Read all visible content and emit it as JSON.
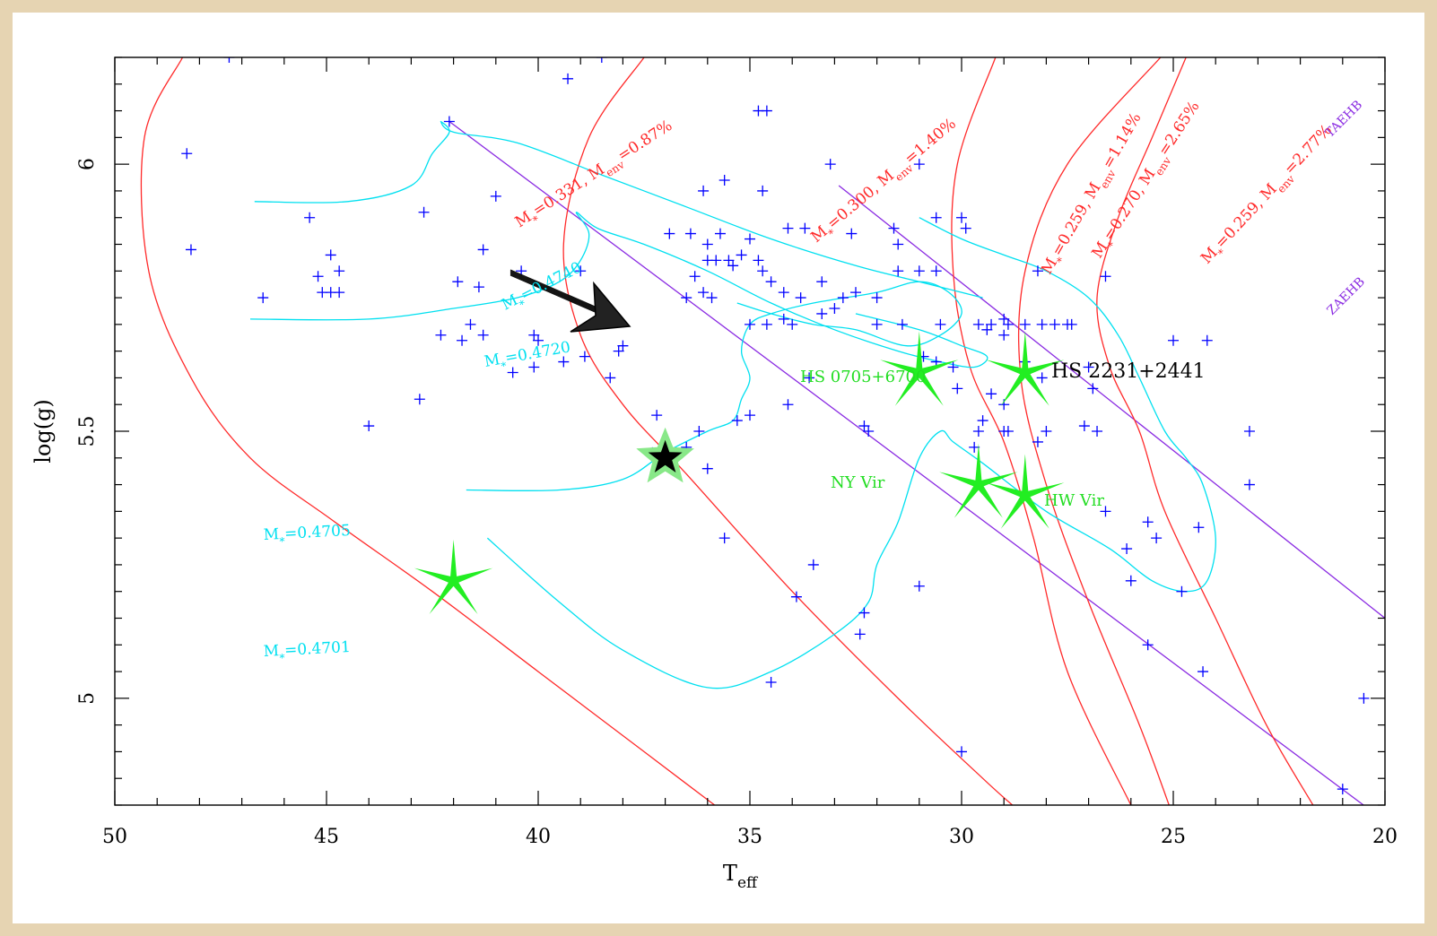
{
  "chart_data": {
    "type": "scatter",
    "title": "",
    "xlabel": "T",
    "xlabel_sub": "eff",
    "ylabel": "log(g)",
    "xlim": [
      50,
      20
    ],
    "ylim": [
      6.2,
      4.8
    ],
    "x_ticks": [
      "50",
      "45",
      "40",
      "35",
      "30",
      "25",
      "20"
    ],
    "y_ticks": [
      "5",
      "5.5",
      "6"
    ],
    "colors": {
      "points": "#0000ff",
      "red_tracks": "#ff2a2a",
      "cyan_tracks": "#00e0f0",
      "purple_lines": "#8a2be2",
      "stars": "#22ee22",
      "highlight_star": "#000000"
    },
    "points": [
      [
        34.5,
        5.03
      ],
      [
        30.0,
        4.9
      ],
      [
        32.3,
        5.16
      ],
      [
        32.4,
        5.12
      ],
      [
        33.9,
        5.19
      ],
      [
        31.0,
        5.21
      ],
      [
        33.5,
        5.25
      ],
      [
        35.6,
        5.3
      ],
      [
        36.0,
        5.43
      ],
      [
        36.5,
        5.47
      ],
      [
        37.3,
        5.46
      ],
      [
        37.2,
        5.53
      ],
      [
        36.2,
        5.5
      ],
      [
        35.3,
        5.52
      ],
      [
        35.0,
        5.53
      ],
      [
        34.1,
        5.55
      ],
      [
        33.6,
        5.6
      ],
      [
        32.3,
        5.51
      ],
      [
        32.2,
        5.5
      ],
      [
        29.7,
        5.47
      ],
      [
        29.6,
        5.5
      ],
      [
        29.0,
        5.5
      ],
      [
        28.9,
        5.5
      ],
      [
        28.2,
        5.48
      ],
      [
        28.0,
        5.5
      ],
      [
        27.1,
        5.51
      ],
      [
        26.8,
        5.5
      ],
      [
        29.5,
        5.52
      ],
      [
        29.3,
        5.57
      ],
      [
        29.0,
        5.55
      ],
      [
        30.6,
        5.63
      ],
      [
        30.1,
        5.58
      ],
      [
        30.2,
        5.62
      ],
      [
        30.9,
        5.64
      ],
      [
        29.0,
        5.68
      ],
      [
        28.9,
        5.7
      ],
      [
        29.3,
        5.7
      ],
      [
        28.5,
        5.63
      ],
      [
        28.1,
        5.6
      ],
      [
        27.0,
        5.62
      ],
      [
        26.9,
        5.58
      ],
      [
        28.1,
        5.7
      ],
      [
        27.5,
        5.7
      ],
      [
        28.2,
        5.8
      ],
      [
        44.0,
        5.51
      ],
      [
        42.8,
        5.56
      ],
      [
        40.6,
        5.61
      ],
      [
        40.1,
        5.62
      ],
      [
        39.4,
        5.63
      ],
      [
        38.9,
        5.64
      ],
      [
        38.3,
        5.6
      ],
      [
        38.0,
        5.66
      ],
      [
        38.1,
        5.65
      ],
      [
        42.3,
        5.68
      ],
      [
        41.8,
        5.67
      ],
      [
        41.6,
        5.7
      ],
      [
        41.3,
        5.68
      ],
      [
        40.1,
        5.68
      ],
      [
        40.0,
        5.67
      ],
      [
        46.5,
        5.75
      ],
      [
        45.1,
        5.76
      ],
      [
        44.9,
        5.76
      ],
      [
        44.7,
        5.76
      ],
      [
        45.2,
        5.79
      ],
      [
        44.7,
        5.8
      ],
      [
        44.9,
        5.83
      ],
      [
        41.4,
        5.77
      ],
      [
        41.9,
        5.78
      ],
      [
        41.3,
        5.84
      ],
      [
        40.4,
        5.8
      ],
      [
        39.0,
        5.8
      ],
      [
        36.5,
        5.75
      ],
      [
        36.1,
        5.76
      ],
      [
        35.9,
        5.75
      ],
      [
        36.3,
        5.79
      ],
      [
        36.0,
        5.82
      ],
      [
        35.8,
        5.82
      ],
      [
        35.5,
        5.82
      ],
      [
        35.4,
        5.81
      ],
      [
        35.2,
        5.83
      ],
      [
        34.8,
        5.82
      ],
      [
        34.7,
        5.8
      ],
      [
        34.5,
        5.78
      ],
      [
        34.2,
        5.76
      ],
      [
        33.8,
        5.75
      ],
      [
        33.3,
        5.78
      ],
      [
        32.8,
        5.75
      ],
      [
        32.5,
        5.76
      ],
      [
        32.0,
        5.75
      ],
      [
        31.5,
        5.8
      ],
      [
        31.0,
        5.8
      ],
      [
        30.6,
        5.8
      ],
      [
        33.0,
        5.73
      ],
      [
        33.3,
        5.72
      ],
      [
        34.6,
        5.7
      ],
      [
        34.2,
        5.71
      ],
      [
        34.0,
        5.7
      ],
      [
        35.0,
        5.7
      ],
      [
        32.0,
        5.7
      ],
      [
        31.4,
        5.7
      ],
      [
        30.5,
        5.7
      ],
      [
        29.6,
        5.7
      ],
      [
        29.4,
        5.69
      ],
      [
        29.0,
        5.71
      ],
      [
        28.5,
        5.7
      ],
      [
        27.8,
        5.7
      ],
      [
        27.4,
        5.7
      ],
      [
        26.6,
        5.79
      ],
      [
        25.0,
        5.67
      ],
      [
        24.2,
        5.67
      ],
      [
        23.2,
        5.5
      ],
      [
        36.0,
        5.85
      ],
      [
        36.4,
        5.87
      ],
      [
        35.7,
        5.87
      ],
      [
        35.0,
        5.86
      ],
      [
        34.1,
        5.88
      ],
      [
        33.7,
        5.88
      ],
      [
        32.6,
        5.87
      ],
      [
        31.5,
        5.85
      ],
      [
        31.6,
        5.88
      ],
      [
        36.9,
        5.87
      ],
      [
        36.1,
        5.95
      ],
      [
        35.6,
        5.97
      ],
      [
        34.7,
        5.95
      ],
      [
        33.1,
        6.0
      ],
      [
        31.0,
        6.0
      ],
      [
        30.6,
        5.9
      ],
      [
        30.0,
        5.9
      ],
      [
        29.9,
        5.88
      ],
      [
        48.2,
        5.84
      ],
      [
        48.3,
        6.02
      ],
      [
        45.4,
        5.9
      ],
      [
        42.7,
        5.91
      ],
      [
        41.0,
        5.94
      ],
      [
        42.1,
        6.08
      ],
      [
        39.3,
        6.16
      ],
      [
        34.8,
        6.1
      ],
      [
        34.6,
        6.1
      ],
      [
        47.3,
        6.2
      ],
      [
        38.5,
        6.2
      ],
      [
        23.2,
        5.4
      ],
      [
        20.5,
        5.0
      ],
      [
        21.0,
        4.83
      ],
      [
        24.3,
        5.05
      ],
      [
        25.6,
        5.1
      ],
      [
        24.8,
        5.2
      ],
      [
        26.0,
        5.22
      ],
      [
        26.1,
        5.28
      ],
      [
        26.6,
        5.35
      ],
      [
        25.6,
        5.33
      ],
      [
        25.4,
        5.3
      ],
      [
        24.4,
        5.32
      ]
    ],
    "red_tracks": [
      {
        "label_parts": [
          "M",
          "*",
          "=0.331, M",
          "env",
          "=0.87%"
        ],
        "points": [
          [
            48.4,
            6.2
          ],
          [
            49.3,
            6.05
          ],
          [
            49.2,
            5.8
          ],
          [
            48.2,
            5.6
          ],
          [
            46.8,
            5.45
          ],
          [
            44.8,
            5.33
          ],
          [
            42.5,
            5.2
          ],
          [
            40.0,
            5.05
          ],
          [
            37.5,
            4.9
          ],
          [
            35.0,
            4.75
          ]
        ]
      },
      {
        "label_parts": [
          "M",
          "*",
          "=0.300, M",
          "env",
          "=1.40%"
        ],
        "points": [
          [
            37.5,
            6.2
          ],
          [
            38.8,
            6.05
          ],
          [
            39.4,
            5.85
          ],
          [
            39.0,
            5.68
          ],
          [
            38.0,
            5.55
          ],
          [
            36.5,
            5.42
          ],
          [
            34.0,
            5.2
          ],
          [
            31.5,
            5.0
          ],
          [
            29.5,
            4.85
          ],
          [
            28.8,
            4.8
          ]
        ]
      },
      {
        "label_parts": [
          "M",
          "*",
          "=0.259, M",
          "env",
          "=1.14%"
        ],
        "points": [
          [
            29.2,
            6.2
          ],
          [
            30.1,
            6.0
          ],
          [
            30.2,
            5.8
          ],
          [
            29.8,
            5.62
          ],
          [
            29.0,
            5.48
          ],
          [
            28.3,
            5.3
          ],
          [
            27.5,
            5.05
          ],
          [
            26.0,
            4.8
          ]
        ]
      },
      {
        "label_parts": [
          "M",
          "*",
          "=0.270, M",
          "env",
          "=2.65%"
        ],
        "points": [
          [
            25.3,
            6.2
          ],
          [
            27.5,
            6.0
          ],
          [
            28.5,
            5.8
          ],
          [
            28.6,
            5.6
          ],
          [
            28.0,
            5.4
          ],
          [
            27.0,
            5.18
          ],
          [
            25.8,
            4.95
          ],
          [
            25.1,
            4.8
          ]
        ]
      },
      {
        "label_parts": [
          "M",
          "*",
          "=0.259, M",
          "env",
          "=2.77%"
        ],
        "points": [
          [
            24.7,
            6.2
          ],
          [
            25.5,
            6.05
          ],
          [
            26.3,
            5.9
          ],
          [
            26.8,
            5.75
          ],
          [
            26.5,
            5.62
          ],
          [
            25.8,
            5.5
          ],
          [
            25.2,
            5.35
          ],
          [
            24.0,
            5.15
          ],
          [
            22.8,
            4.95
          ],
          [
            21.7,
            4.8
          ]
        ]
      }
    ],
    "cyan_tracks": [
      {
        "label_parts": [
          "M",
          "*",
          "=0.4740"
        ],
        "points": [
          [
            41.2,
            5.3
          ],
          [
            39.5,
            5.18
          ],
          [
            38.0,
            5.09
          ],
          [
            36.0,
            5.02
          ],
          [
            34.5,
            5.05
          ],
          [
            33.0,
            5.12
          ],
          [
            32.2,
            5.18
          ],
          [
            32.0,
            5.25
          ],
          [
            31.5,
            5.33
          ],
          [
            31.0,
            5.45
          ],
          [
            30.5,
            5.5
          ],
          [
            30.2,
            5.48
          ],
          [
            29.5,
            5.44
          ],
          [
            28.0,
            5.35
          ],
          [
            26.5,
            5.28
          ],
          [
            25.5,
            5.22
          ],
          [
            24.7,
            5.2
          ],
          [
            24.2,
            5.22
          ],
          [
            24.0,
            5.3
          ],
          [
            24.3,
            5.4
          ],
          [
            24.7,
            5.45
          ],
          [
            25.2,
            5.5
          ],
          [
            25.8,
            5.6
          ],
          [
            26.3,
            5.68
          ],
          [
            27.0,
            5.75
          ],
          [
            28.0,
            5.8
          ],
          [
            29.0,
            5.83
          ],
          [
            30.0,
            5.86
          ],
          [
            31.0,
            5.9
          ]
        ]
      },
      {
        "label_parts": [
          "M",
          "*",
          "=0.4720"
        ],
        "points": [
          [
            41.7,
            5.39
          ],
          [
            39.5,
            5.39
          ],
          [
            38.0,
            5.41
          ],
          [
            37.0,
            5.46
          ],
          [
            36.0,
            5.5
          ],
          [
            35.4,
            5.52
          ],
          [
            35.2,
            5.56
          ],
          [
            35.0,
            5.6
          ],
          [
            35.2,
            5.65
          ],
          [
            35.0,
            5.7
          ],
          [
            34.5,
            5.72
          ],
          [
            33.5,
            5.74
          ],
          [
            32.0,
            5.76
          ],
          [
            31.0,
            5.78
          ],
          [
            30.3,
            5.76
          ],
          [
            30.0,
            5.72
          ],
          [
            30.5,
            5.68
          ],
          [
            31.3,
            5.66
          ],
          [
            32.5,
            5.69
          ],
          [
            33.5,
            5.7
          ],
          [
            34.5,
            5.72
          ],
          [
            35.3,
            5.74
          ]
        ]
      },
      {
        "label_parts": [
          "M",
          "*",
          "=0.4705"
        ],
        "points": [
          [
            46.8,
            5.71
          ],
          [
            44.0,
            5.71
          ],
          [
            42.0,
            5.73
          ],
          [
            40.5,
            5.75
          ],
          [
            39.5,
            5.78
          ],
          [
            39.0,
            5.82
          ],
          [
            38.8,
            5.87
          ],
          [
            39.1,
            5.91
          ],
          [
            38.6,
            5.88
          ],
          [
            37.5,
            5.85
          ],
          [
            36.0,
            5.8
          ],
          [
            34.5,
            5.74
          ],
          [
            33.0,
            5.69
          ],
          [
            31.5,
            5.65
          ],
          [
            30.5,
            5.63
          ],
          [
            29.7,
            5.62
          ],
          [
            29.4,
            5.64
          ],
          [
            30.0,
            5.66
          ],
          [
            31.0,
            5.69
          ],
          [
            32.5,
            5.72
          ]
        ]
      },
      {
        "label_parts": [
          "M",
          "*",
          "=0.4701"
        ],
        "points": [
          [
            46.7,
            5.93
          ],
          [
            44.5,
            5.93
          ],
          [
            43.0,
            5.96
          ],
          [
            42.5,
            6.02
          ],
          [
            42.1,
            6.06
          ],
          [
            42.3,
            6.08
          ],
          [
            42.0,
            6.06
          ],
          [
            40.5,
            6.04
          ],
          [
            38.5,
            5.98
          ],
          [
            36.5,
            5.92
          ],
          [
            34.5,
            5.86
          ],
          [
            32.5,
            5.81
          ],
          [
            31.0,
            5.78
          ],
          [
            30.0,
            5.76
          ],
          [
            29.5,
            5.75
          ]
        ]
      }
    ],
    "purple_lines": [
      {
        "label": "TAEHB",
        "points": [
          [
            42.1,
            6.08
          ],
          [
            20.0,
            4.77
          ]
        ]
      },
      {
        "label": "ZAEHB",
        "points": [
          [
            32.9,
            5.96
          ],
          [
            20.0,
            5.15
          ]
        ]
      }
    ],
    "green_stars": [
      {
        "x": 42.0,
        "y": 5.22,
        "label": ""
      },
      {
        "x": 29.6,
        "y": 5.4,
        "label": "HS 0705+6700"
      },
      {
        "x": 28.5,
        "y": 5.38,
        "label": "HS 2231+2441"
      },
      {
        "x": 31.0,
        "y": 5.61,
        "label": "NY Vir"
      },
      {
        "x": 28.5,
        "y": 5.61,
        "label": "HW Vir"
      }
    ],
    "highlight_star": {
      "x": 37.0,
      "y": 5.45
    }
  }
}
